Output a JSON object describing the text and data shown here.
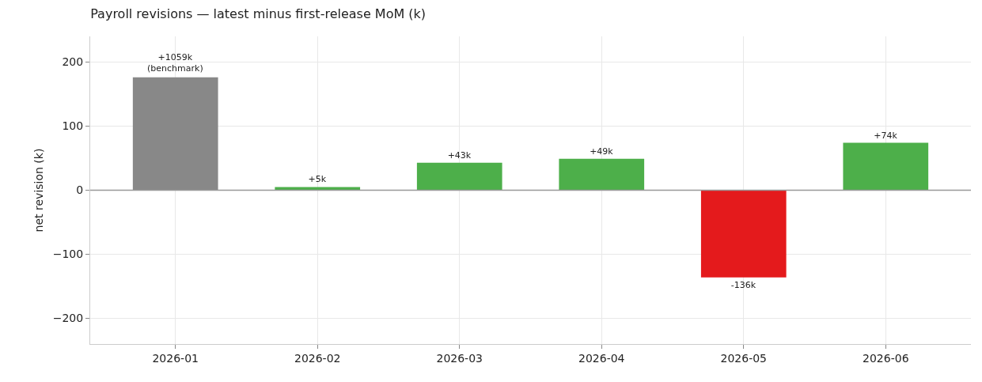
{
  "chart_data": {
    "type": "bar",
    "title": "Payroll revisions — latest minus first-release MoM (k)",
    "ylabel": "net revision (k)",
    "categories": [
      "2026-01",
      "2026-02",
      "2026-03",
      "2026-04",
      "2026-05",
      "2026-06"
    ],
    "values": [
      176,
      5,
      43,
      49,
      -136,
      74
    ],
    "colors": [
      "#888888",
      "#4daf4a",
      "#4daf4a",
      "#4daf4a",
      "#e41a1c",
      "#4daf4a"
    ],
    "value_labels": [
      null,
      "+5k",
      "+43k",
      "+49k",
      "-136k",
      "+74k"
    ],
    "annotations": [
      {
        "text": "+1059k\n(benchmark)",
        "x": "2026-01",
        "y": 176
      }
    ],
    "ylim": [
      -240,
      240
    ],
    "yticks": [
      -200,
      -100,
      0,
      100,
      200
    ],
    "grid": true,
    "ref_lines": [
      {
        "axis": "y",
        "value": 0,
        "color": "#999999"
      }
    ]
  }
}
